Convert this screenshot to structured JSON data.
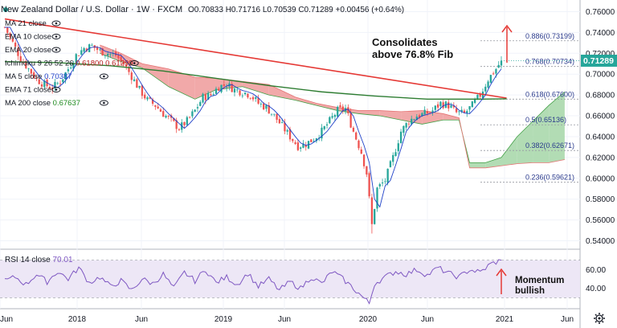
{
  "header": {
    "symbol": "New Zealand Dollar / U.S. Dollar",
    "interval": "1W",
    "exchange": "FXCM",
    "ohlc": "O0.70833  H0.71716  L0.70539  C0.71289  +0.00456 (+0.64%)"
  },
  "legend": [
    {
      "label": "MA 21 close",
      "value": "",
      "color": "#7e57c2"
    },
    {
      "label": "EMA 10 close",
      "value": "",
      "color": "#7e57c2"
    },
    {
      "label": "EMA 20 close",
      "value": "",
      "color": "#7e57c2"
    },
    {
      "label": "Ichimoku 9 26 52 26",
      "value": "0.61800  0.61299",
      "color": "#b71c1c"
    },
    {
      "label": "MA 5 close",
      "value": "0.70387",
      "color": "#1e40c8"
    },
    {
      "label": "EMA 71 close",
      "value": "",
      "color": "#7e57c2"
    },
    {
      "label": "MA 200 close",
      "value": "0.67637",
      "color": "#1f8a1f"
    }
  ],
  "annotations": {
    "consolidates_line1": "Consolidates",
    "consolidates_line2": "above 76.8% Fib",
    "momentum_line1": "Momentum",
    "momentum_line2": "bullish"
  },
  "colors": {
    "bull": "#26a69a",
    "bear": "#ef5350",
    "trendline": "#e53935",
    "ma200": "#2e7d32",
    "ma5": "#1e40c8",
    "cloud_bull": "#a5d6a7",
    "cloud_bear": "#ef9a9a",
    "rsi": "#7e57c2",
    "rsi_band": "#ede7f6",
    "price_tag": "#26a69a",
    "fib_text": "#2a3a8c"
  },
  "chart_data": {
    "type": "candlestick",
    "symbol": "NZD/USD",
    "timeframe": "1W",
    "ylim": [
      0.535,
      0.765
    ],
    "y_ticks": [
      "0.76000",
      "0.74000",
      "0.72000",
      "0.70000",
      "0.68000",
      "0.66000",
      "0.64000",
      "0.62000",
      "0.60000",
      "0.58000",
      "0.56000",
      "0.54000"
    ],
    "x_ticks": [
      "Jun",
      "2018",
      "Jun",
      "2019",
      "Jun",
      "2020",
      "Jun",
      "2021",
      "Jun"
    ],
    "last_price": "0.71289",
    "price_path": [
      [
        0,
        0.745
      ],
      [
        3,
        0.73
      ],
      [
        6,
        0.715
      ],
      [
        9,
        0.705
      ],
      [
        12,
        0.695
      ],
      [
        15,
        0.69
      ],
      [
        18,
        0.687
      ],
      [
        21,
        0.693
      ],
      [
        24,
        0.705
      ],
      [
        27,
        0.718
      ],
      [
        30,
        0.725
      ],
      [
        33,
        0.727
      ],
      [
        36,
        0.722
      ],
      [
        39,
        0.72
      ],
      [
        42,
        0.718
      ],
      [
        45,
        0.71
      ],
      [
        48,
        0.698
      ],
      [
        51,
        0.685
      ],
      [
        54,
        0.675
      ],
      [
        57,
        0.67
      ],
      [
        60,
        0.662
      ],
      [
        63,
        0.655
      ],
      [
        66,
        0.648
      ],
      [
        69,
        0.655
      ],
      [
        72,
        0.665
      ],
      [
        75,
        0.678
      ],
      [
        78,
        0.68
      ],
      [
        81,
        0.688
      ],
      [
        84,
        0.69
      ],
      [
        87,
        0.685
      ],
      [
        90,
        0.683
      ],
      [
        93,
        0.68
      ],
      [
        96,
        0.672
      ],
      [
        99,
        0.668
      ],
      [
        102,
        0.66
      ],
      [
        105,
        0.65
      ],
      [
        108,
        0.64
      ],
      [
        111,
        0.631
      ],
      [
        114,
        0.633
      ],
      [
        117,
        0.638
      ],
      [
        120,
        0.645
      ],
      [
        123,
        0.655
      ],
      [
        126,
        0.665
      ],
      [
        129,
        0.667
      ],
      [
        132,
        0.645
      ],
      [
        135,
        0.625
      ],
      [
        137,
        0.605
      ],
      [
        138,
        0.58
      ],
      [
        139,
        0.555
      ],
      [
        141,
        0.59
      ],
      [
        144,
        0.598
      ],
      [
        147,
        0.62
      ],
      [
        150,
        0.645
      ],
      [
        153,
        0.655
      ],
      [
        156,
        0.66
      ],
      [
        159,
        0.662
      ],
      [
        162,
        0.665
      ],
      [
        165,
        0.672
      ],
      [
        168,
        0.67
      ],
      [
        171,
        0.663
      ],
      [
        174,
        0.662
      ],
      [
        177,
        0.67
      ],
      [
        180,
        0.68
      ],
      [
        183,
        0.695
      ],
      [
        186,
        0.705
      ],
      [
        188,
        0.7129
      ]
    ],
    "fib_levels": [
      {
        "ratio": "0.886",
        "value": 0.73199,
        "label": "0.886(0.73199)"
      },
      {
        "ratio": "0.768",
        "value": 0.70734,
        "label": "0.768(0.70734)"
      },
      {
        "ratio": "0.618",
        "value": 0.676,
        "label": "0.618(0.67600)"
      },
      {
        "ratio": "0.5",
        "value": 0.65136,
        "label": "0.5(0.65136)"
      },
      {
        "ratio": "0.382",
        "value": 0.62671,
        "label": "0.382(0.62671)"
      },
      {
        "ratio": "0.236",
        "value": 0.59621,
        "label": "0.236(0.59621)"
      }
    ],
    "trendline": [
      [
        0,
        0.753
      ],
      [
        190,
        0.677
      ]
    ],
    "ma200": [
      [
        0,
        0.712
      ],
      [
        20,
        0.711
      ],
      [
        40,
        0.708
      ],
      [
        60,
        0.703
      ],
      [
        80,
        0.696
      ],
      [
        100,
        0.689
      ],
      [
        120,
        0.683
      ],
      [
        140,
        0.679
      ],
      [
        160,
        0.676
      ],
      [
        180,
        0.676
      ],
      [
        190,
        0.6763
      ]
    ],
    "cloud": {
      "span_a": [
        [
          36,
          0.72
        ],
        [
          44,
          0.712
        ],
        [
          52,
          0.706
        ],
        [
          62,
          0.688
        ],
        [
          72,
          0.676
        ],
        [
          80,
          0.685
        ],
        [
          90,
          0.688
        ],
        [
          100,
          0.68
        ],
        [
          110,
          0.675
        ],
        [
          118,
          0.67
        ],
        [
          126,
          0.665
        ],
        [
          134,
          0.662
        ],
        [
          142,
          0.66
        ],
        [
          150,
          0.656
        ],
        [
          158,
          0.652
        ],
        [
          166,
          0.656
        ],
        [
          172,
          0.656
        ],
        [
          176,
          0.615
        ],
        [
          182,
          0.615
        ],
        [
          188,
          0.62
        ],
        [
          194,
          0.64
        ],
        [
          200,
          0.655
        ],
        [
          206,
          0.67
        ],
        [
          212,
          0.683
        ]
      ],
      "span_b": [
        [
          36,
          0.728
        ],
        [
          44,
          0.72
        ],
        [
          52,
          0.71
        ],
        [
          62,
          0.705
        ],
        [
          72,
          0.697
        ],
        [
          80,
          0.696
        ],
        [
          90,
          0.693
        ],
        [
          100,
          0.69
        ],
        [
          110,
          0.678
        ],
        [
          118,
          0.672
        ],
        [
          126,
          0.668
        ],
        [
          134,
          0.665
        ],
        [
          142,
          0.665
        ],
        [
          150,
          0.664
        ],
        [
          158,
          0.665
        ],
        [
          166,
          0.662
        ],
        [
          172,
          0.658
        ],
        [
          176,
          0.61
        ],
        [
          182,
          0.61
        ],
        [
          188,
          0.612
        ],
        [
          194,
          0.614
        ],
        [
          200,
          0.615
        ],
        [
          206,
          0.615
        ],
        [
          212,
          0.618
        ]
      ]
    },
    "rsi": {
      "label": "RSI 14 close",
      "value": "70.01",
      "ylim": [
        20,
        80
      ],
      "ticks": [
        "60.00",
        "40.00"
      ],
      "band": [
        30,
        70
      ],
      "values": [
        [
          0,
          48
        ],
        [
          4,
          52
        ],
        [
          8,
          44
        ],
        [
          12,
          55
        ],
        [
          16,
          47
        ],
        [
          20,
          58
        ],
        [
          24,
          50
        ],
        [
          28,
          62
        ],
        [
          32,
          46
        ],
        [
          36,
          52
        ],
        [
          40,
          42
        ],
        [
          44,
          48
        ],
        [
          48,
          38
        ],
        [
          52,
          50
        ],
        [
          56,
          45
        ],
        [
          60,
          55
        ],
        [
          64,
          40
        ],
        [
          68,
          57
        ],
        [
          72,
          48
        ],
        [
          76,
          60
        ],
        [
          80,
          46
        ],
        [
          84,
          52
        ],
        [
          88,
          44
        ],
        [
          92,
          56
        ],
        [
          96,
          42
        ],
        [
          100,
          50
        ],
        [
          104,
          38
        ],
        [
          108,
          47
        ],
        [
          112,
          40
        ],
        [
          116,
          52
        ],
        [
          120,
          45
        ],
        [
          124,
          58
        ],
        [
          128,
          50
        ],
        [
          132,
          40
        ],
        [
          135,
          32
        ],
        [
          138,
          24
        ],
        [
          140,
          45
        ],
        [
          144,
          52
        ],
        [
          148,
          58
        ],
        [
          152,
          55
        ],
        [
          156,
          60
        ],
        [
          160,
          54
        ],
        [
          164,
          62
        ],
        [
          168,
          56
        ],
        [
          172,
          52
        ],
        [
          176,
          60
        ],
        [
          180,
          57
        ],
        [
          184,
          66
        ],
        [
          188,
          70
        ]
      ]
    }
  }
}
